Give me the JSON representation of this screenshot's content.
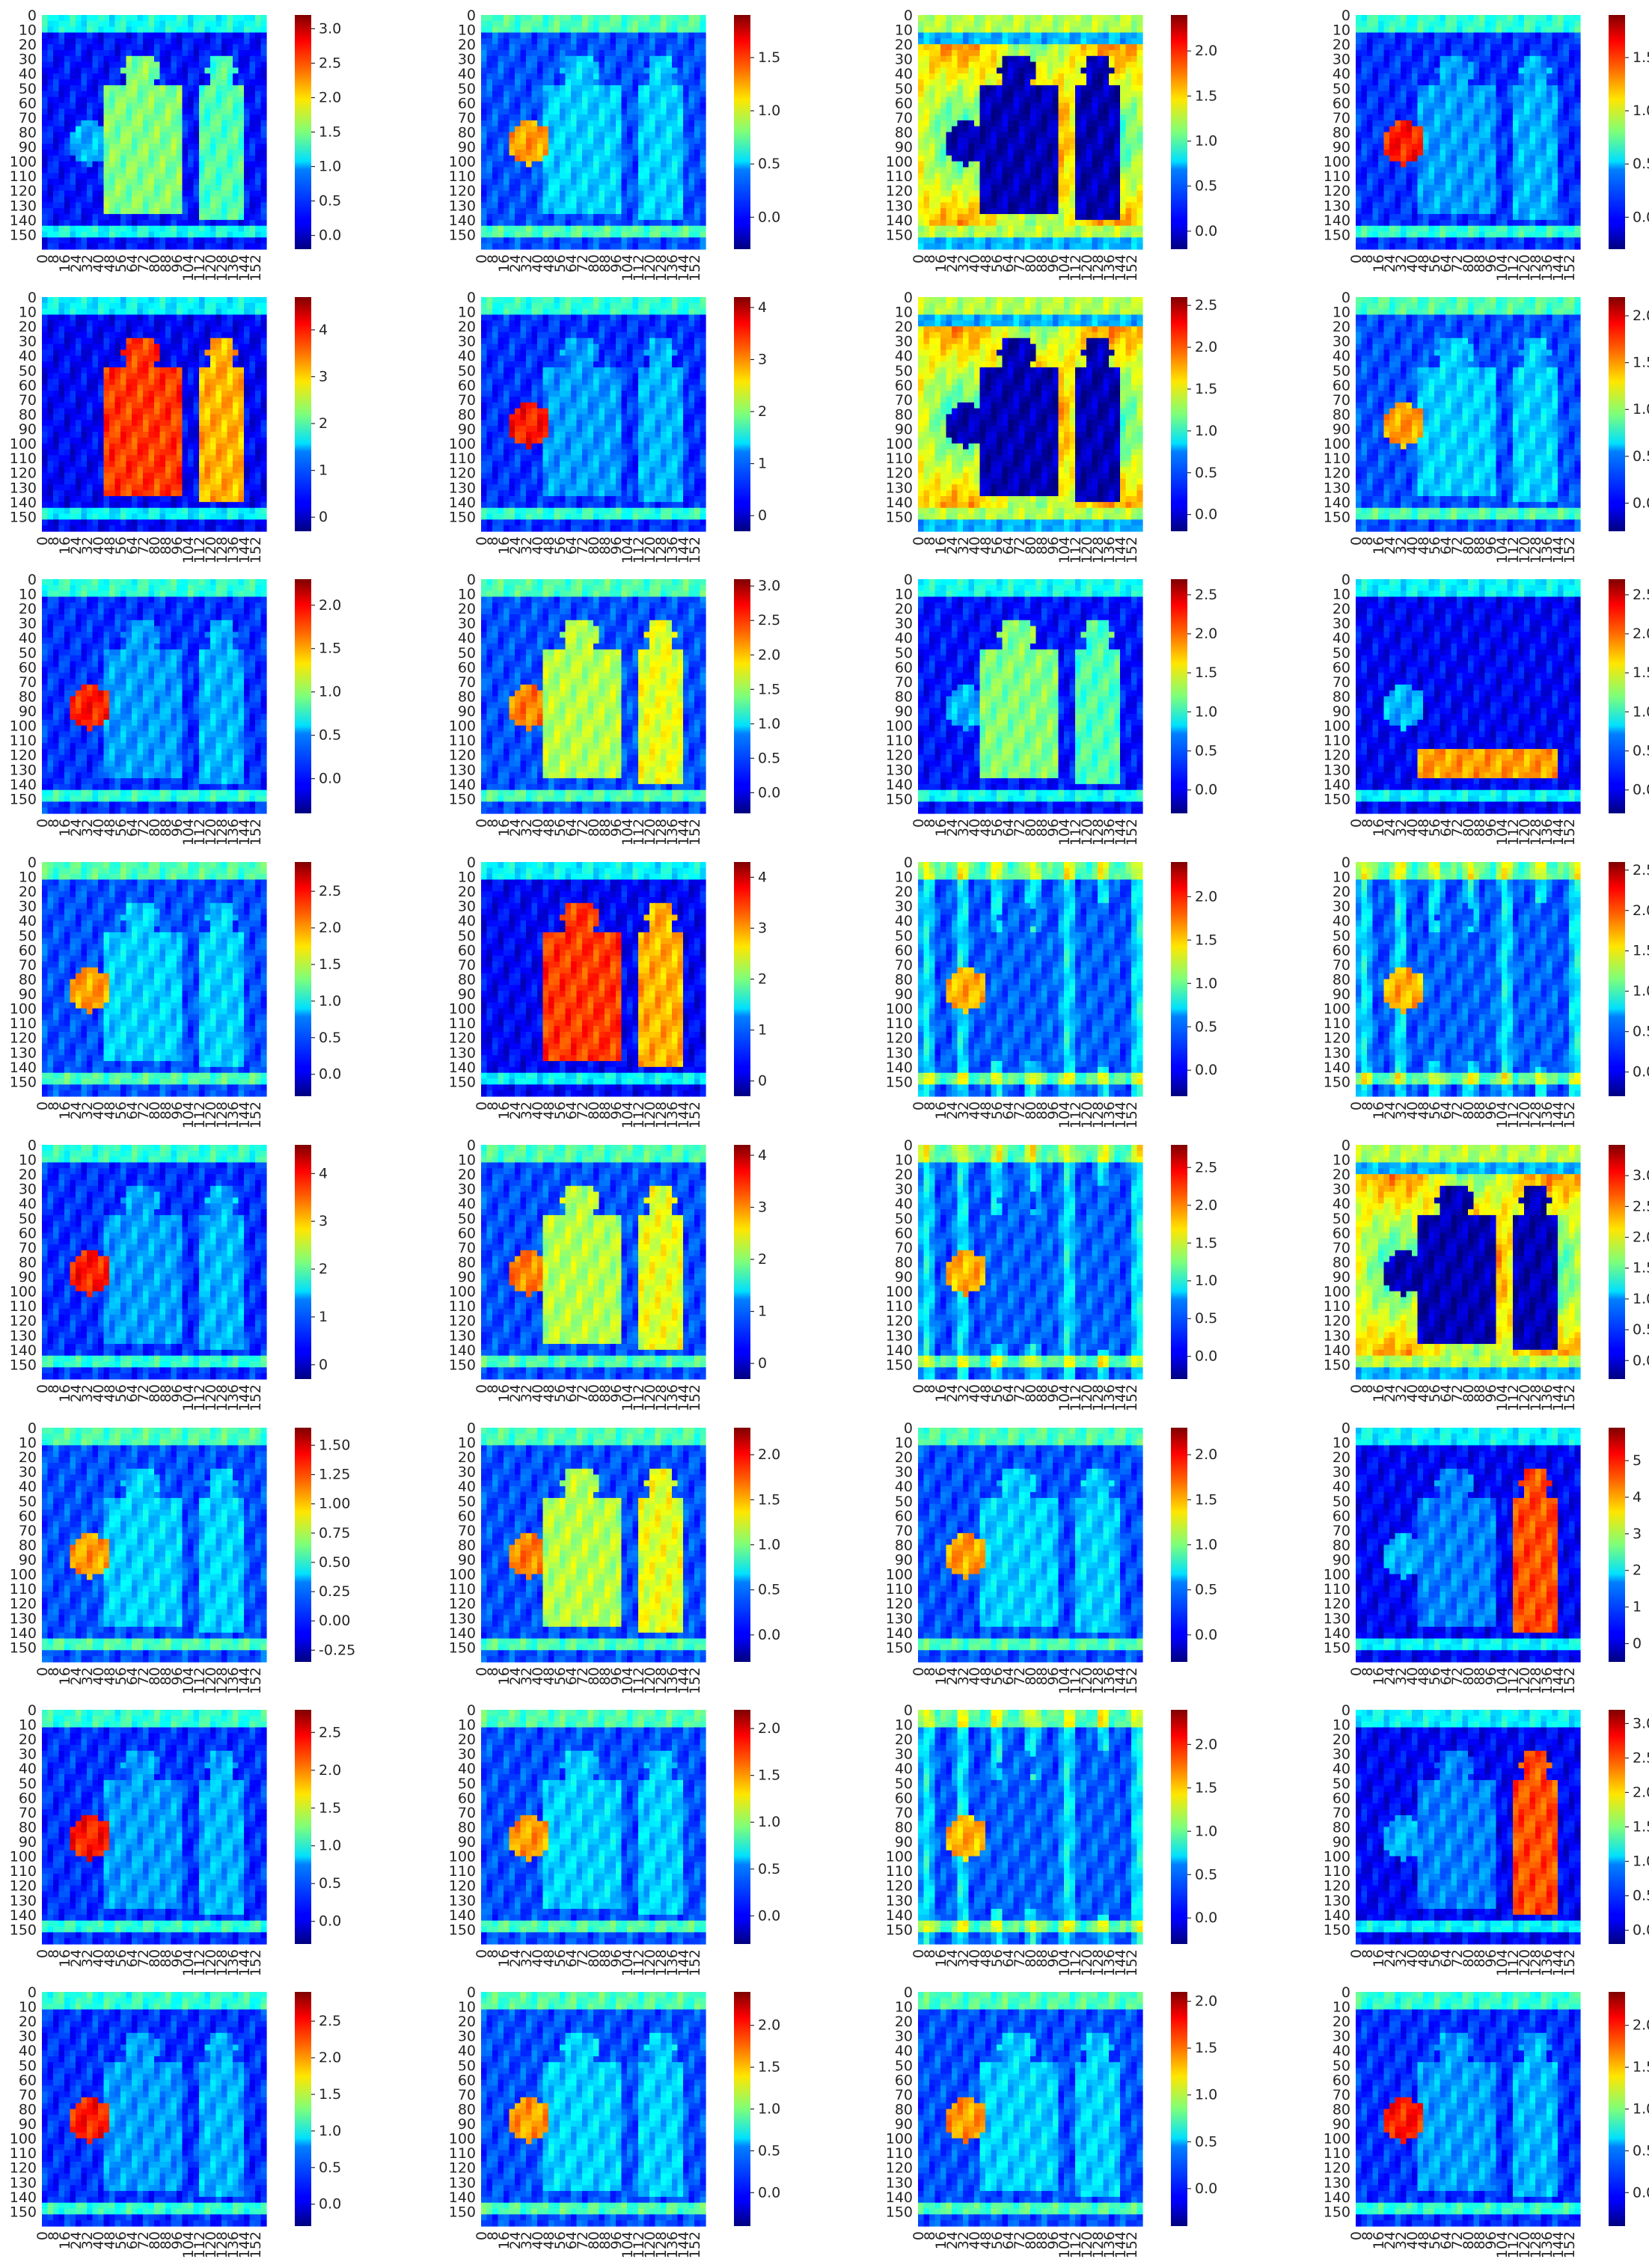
{
  "chart_data": {
    "type": "heatmap",
    "layout": "8 rows x 4 columns of feature-map heatmaps with colorbars",
    "colormap": "jet",
    "grid": false,
    "y_ticks": [
      "0",
      "10",
      "20",
      "30",
      "40",
      "50",
      "60",
      "70",
      "80",
      "90",
      "100",
      "110",
      "120",
      "130",
      "140",
      "150"
    ],
    "x_ticks": [
      "0",
      "8",
      "16",
      "24",
      "32",
      "40",
      "48",
      "56",
      "64",
      "72",
      "80",
      "88",
      "96",
      "104",
      "112",
      "120",
      "128",
      "136",
      "144",
      "152"
    ],
    "panels": [
      {
        "cbar": [
          "0.0",
          "0.5",
          "1.0",
          "1.5",
          "2.0",
          "2.5",
          "3.0"
        ],
        "range": [
          -0.2,
          3.2
        ],
        "focus": "players-dim"
      },
      {
        "cbar": [
          "0.0",
          "0.5",
          "1.0",
          "1.5"
        ],
        "range": [
          -0.3,
          1.9
        ],
        "focus": "edges-ball"
      },
      {
        "cbar": [
          "0.0",
          "0.5",
          "1.0",
          "1.5",
          "2.0"
        ],
        "range": [
          -0.2,
          2.4
        ],
        "focus": "background"
      },
      {
        "cbar": [
          "0.0",
          "0.5",
          "1.0",
          "1.5"
        ],
        "range": [
          -0.3,
          1.9
        ],
        "focus": "ball"
      },
      {
        "cbar": [
          "0",
          "1",
          "2",
          "3",
          "4"
        ],
        "range": [
          -0.3,
          4.7
        ],
        "focus": "players-strong"
      },
      {
        "cbar": [
          "0",
          "1",
          "2",
          "3",
          "4"
        ],
        "range": [
          -0.3,
          4.2
        ],
        "focus": "ball"
      },
      {
        "cbar": [
          "0.0",
          "0.5",
          "1.0",
          "1.5",
          "2.0",
          "2.5"
        ],
        "range": [
          -0.2,
          2.6
        ],
        "focus": "background"
      },
      {
        "cbar": [
          "0.0",
          "0.5",
          "1.0",
          "1.5",
          "2.0"
        ],
        "range": [
          -0.3,
          2.2
        ],
        "focus": "edges-ball"
      },
      {
        "cbar": [
          "0.0",
          "0.5",
          "1.0",
          "1.5",
          "2.0"
        ],
        "range": [
          -0.4,
          2.3
        ],
        "focus": "ball"
      },
      {
        "cbar": [
          "0.0",
          "0.5",
          "1.0",
          "1.5",
          "2.0",
          "2.5",
          "3.0"
        ],
        "range": [
          -0.3,
          3.1
        ],
        "focus": "players-mid"
      },
      {
        "cbar": [
          "0.0",
          "0.5",
          "1.0",
          "1.5",
          "2.0",
          "2.5"
        ],
        "range": [
          -0.3,
          2.7
        ],
        "focus": "players-dim"
      },
      {
        "cbar": [
          "0.0",
          "0.5",
          "1.0",
          "1.5",
          "2.0",
          "2.5"
        ],
        "range": [
          -0.3,
          2.7
        ],
        "focus": "lower"
      },
      {
        "cbar": [
          "0.0",
          "0.5",
          "1.0",
          "1.5",
          "2.0",
          "2.5"
        ],
        "range": [
          -0.3,
          2.9
        ],
        "focus": "edges-ball"
      },
      {
        "cbar": [
          "0",
          "1",
          "2",
          "3",
          "4"
        ],
        "range": [
          -0.3,
          4.3
        ],
        "focus": "players-strong"
      },
      {
        "cbar": [
          "0.0",
          "0.5",
          "1.0",
          "1.5",
          "2.0"
        ],
        "range": [
          -0.3,
          2.4
        ],
        "focus": "stripes"
      },
      {
        "cbar": [
          "0.0",
          "0.5",
          "1.0",
          "1.5",
          "2.0",
          "2.5"
        ],
        "range": [
          -0.3,
          2.6
        ],
        "focus": "stripes"
      },
      {
        "cbar": [
          "0",
          "1",
          "2",
          "3",
          "4"
        ],
        "range": [
          -0.3,
          4.6
        ],
        "focus": "ball"
      },
      {
        "cbar": [
          "0",
          "1",
          "2",
          "3",
          "4"
        ],
        "range": [
          -0.3,
          4.2
        ],
        "focus": "players-mid"
      },
      {
        "cbar": [
          "0.0",
          "0.5",
          "1.0",
          "1.5",
          "2.0",
          "2.5"
        ],
        "range": [
          -0.3,
          2.8
        ],
        "focus": "stripes"
      },
      {
        "cbar": [
          "0.0",
          "0.5",
          "1.0",
          "1.5",
          "2.0",
          "2.5",
          "3.0"
        ],
        "range": [
          -0.3,
          3.5
        ],
        "focus": "background"
      },
      {
        "cbar": [
          "-0.25",
          "0.00",
          "0.25",
          "0.50",
          "0.75",
          "1.00",
          "1.25",
          "1.50"
        ],
        "range": [
          -0.35,
          1.65
        ],
        "focus": "edges-ball"
      },
      {
        "cbar": [
          "0.0",
          "0.5",
          "1.0",
          "1.5",
          "2.0"
        ],
        "range": [
          -0.3,
          2.3
        ],
        "focus": "players-mid"
      },
      {
        "cbar": [
          "0.0",
          "0.5",
          "1.0",
          "1.5",
          "2.0"
        ],
        "range": [
          -0.3,
          2.3
        ],
        "focus": "edges-ball"
      },
      {
        "cbar": [
          "0",
          "1",
          "2",
          "3",
          "4",
          "5"
        ],
        "range": [
          -0.5,
          5.9
        ],
        "focus": "right-player"
      },
      {
        "cbar": [
          "0.0",
          "0.5",
          "1.0",
          "1.5",
          "2.0",
          "2.5"
        ],
        "range": [
          -0.3,
          2.8
        ],
        "focus": "ball"
      },
      {
        "cbar": [
          "0.0",
          "0.5",
          "1.0",
          "1.5",
          "2.0"
        ],
        "range": [
          -0.3,
          2.2
        ],
        "focus": "edges-ball"
      },
      {
        "cbar": [
          "0.0",
          "0.5",
          "1.0",
          "1.5",
          "2.0"
        ],
        "range": [
          -0.3,
          2.4
        ],
        "focus": "stripes"
      },
      {
        "cbar": [
          "0.0",
          "0.5",
          "1.0",
          "1.5",
          "2.0",
          "2.5",
          "3.0"
        ],
        "range": [
          -0.2,
          3.2
        ],
        "focus": "right-player"
      },
      {
        "cbar": [
          "0.0",
          "0.5",
          "1.0",
          "1.5",
          "2.0",
          "2.5"
        ],
        "range": [
          -0.3,
          2.9
        ],
        "focus": "ball"
      },
      {
        "cbar": [
          "0.0",
          "0.5",
          "1.0",
          "1.5",
          "2.0"
        ],
        "range": [
          -0.4,
          2.4
        ],
        "focus": "edges-ball"
      },
      {
        "cbar": [
          "0.0",
          "0.5",
          "1.0",
          "1.5",
          "2.0"
        ],
        "range": [
          -0.4,
          2.1
        ],
        "focus": "edges-ball"
      },
      {
        "cbar": [
          "0.0",
          "0.5",
          "1.0",
          "1.5",
          "2.0"
        ],
        "range": [
          -0.4,
          2.4
        ],
        "focus": "ball"
      }
    ]
  }
}
